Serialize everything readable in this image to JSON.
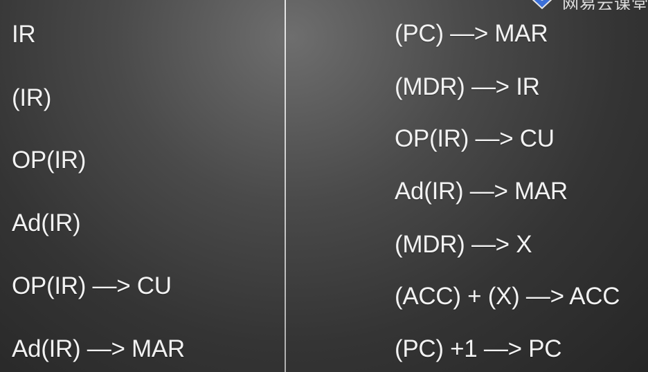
{
  "left_column": {
    "items": [
      "IR",
      "(IR)",
      "OP(IR)",
      "Ad(IR)",
      "OP(IR) —> CU",
      "Ad(IR) —> MAR"
    ]
  },
  "right_column": {
    "items": [
      "(PC) —> MAR",
      "(MDR) —> IR",
      "OP(IR) —> CU",
      "Ad(IR) —> MAR",
      "(MDR) —> X",
      "(ACC) + (X) —> ACC",
      "(PC) +1 —> PC"
    ]
  },
  "watermark": {
    "icon": "shield-logo-icon",
    "text": "网易云课堂",
    "accent_color": "#3b6fd8"
  }
}
